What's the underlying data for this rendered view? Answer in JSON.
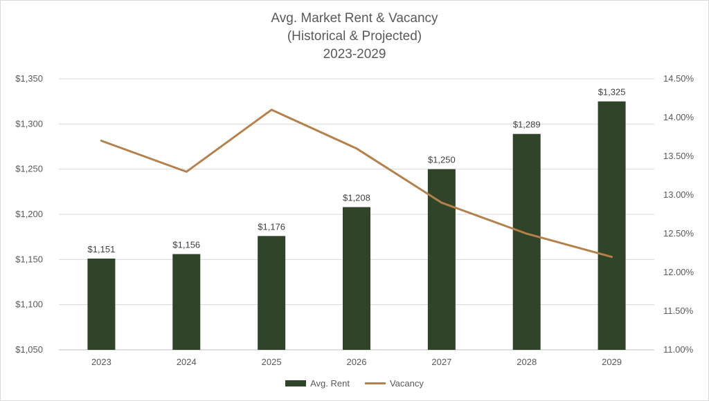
{
  "chart_data": {
    "type": "bar",
    "title_lines": [
      "Avg. Market Rent & Vacancy",
      "(Historical & Projected)",
      "2023-2029"
    ],
    "categories": [
      "2023",
      "2024",
      "2025",
      "2026",
      "2027",
      "2028",
      "2029"
    ],
    "series": [
      {
        "name": "Avg. Rent",
        "type": "bar",
        "axis": "left",
        "color": "#2f4429",
        "values": [
          1151,
          1156,
          1176,
          1208,
          1250,
          1289,
          1325
        ],
        "data_labels": [
          "$1,151",
          "$1,156",
          "$1,176",
          "$1,208",
          "$1,250",
          "$1,289",
          "$1,325"
        ]
      },
      {
        "name": "Vacancy",
        "type": "line",
        "axis": "right",
        "color": "#b5804a",
        "values": [
          13.7,
          13.3,
          14.1,
          13.6,
          12.9,
          12.5,
          12.2
        ]
      }
    ],
    "y_left": {
      "range": [
        1050,
        1350
      ],
      "ticks": [
        1050,
        1100,
        1150,
        1200,
        1250,
        1300,
        1350
      ],
      "tick_labels": [
        "$1,050",
        "$1,100",
        "$1,150",
        "$1,200",
        "$1,250",
        "$1,300",
        "$1,350"
      ]
    },
    "y_right": {
      "range": [
        11.0,
        14.5
      ],
      "ticks": [
        11.0,
        11.5,
        12.0,
        12.5,
        13.0,
        13.5,
        14.0,
        14.5
      ],
      "tick_labels": [
        "11.00%",
        "11.50%",
        "12.00%",
        "12.50%",
        "13.00%",
        "13.50%",
        "14.00%",
        "14.50%"
      ]
    },
    "grid": true,
    "legend_position": "bottom"
  }
}
